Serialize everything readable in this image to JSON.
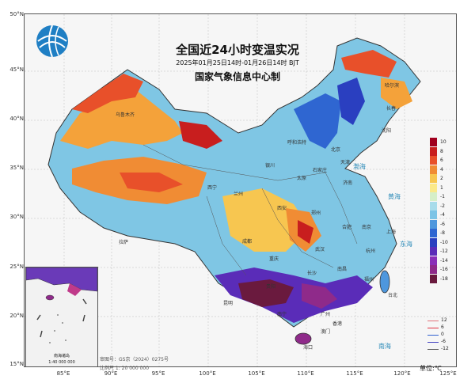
{
  "title": "全国近24小时变温实况",
  "subtitle": "2025年01月25日14时-01月26日14时 BJT",
  "agency": "国家气象信息中心制",
  "unit_label": "单位:℃",
  "approval": "审图号：GS京（2024）0275号",
  "scale": "比例尺 1: 20 000 000",
  "inset": {
    "title": "南海诸岛",
    "scale": "1:40 000 000"
  },
  "lat_labels": [
    "50°N",
    "45°N",
    "40°N",
    "35°N",
    "30°N",
    "25°N",
    "20°N",
    "15°N"
  ],
  "lon_labels": [
    "85°E",
    "90°E",
    "95°E",
    "100°E",
    "105°E",
    "110°E",
    "115°E",
    "120°E",
    "125°E"
  ],
  "legend": {
    "labels": [
      "10",
      "8",
      "6",
      "4",
      "2",
      "1",
      "-1",
      "-2",
      "-4",
      "-6",
      "-8",
      "-10",
      "-12",
      "-14",
      "-16",
      "-18"
    ],
    "colors": [
      "#a0001e",
      "#c81e1e",
      "#e8502a",
      "#f08c34",
      "#f7c650",
      "#fbe98a",
      "#d6efc8",
      "#a8dceb",
      "#7cc4e6",
      "#4e97dd",
      "#2f66d1",
      "#2a3fc0",
      "#5a2cb8",
      "#8a2fb8",
      "#8f2a8a",
      "#6a1a3e"
    ]
  },
  "contour_legend": [
    {
      "label": "12",
      "color": "#e0707a"
    },
    {
      "label": "6",
      "color": "#e03040"
    },
    {
      "label": "0",
      "color": "#3060d0"
    },
    {
      "label": "-6",
      "color": "#4040c0"
    },
    {
      "label": "-12",
      "color": "#606060"
    }
  ],
  "cities": [
    {
      "name": "哈尔滨"
    },
    {
      "name": "长春"
    },
    {
      "name": "沈阳"
    },
    {
      "name": "呼和浩特"
    },
    {
      "name": "北京"
    },
    {
      "name": "天津"
    },
    {
      "name": "石家庄"
    },
    {
      "name": "太原"
    },
    {
      "name": "济南"
    },
    {
      "name": "银川"
    },
    {
      "name": "兰州"
    },
    {
      "name": "西宁"
    },
    {
      "name": "西安"
    },
    {
      "name": "郑州"
    },
    {
      "name": "合肥"
    },
    {
      "name": "南京"
    },
    {
      "name": "上海"
    },
    {
      "name": "杭州"
    },
    {
      "name": "武汉"
    },
    {
      "name": "成都"
    },
    {
      "name": "重庆"
    },
    {
      "name": "长沙"
    },
    {
      "name": "南昌"
    },
    {
      "name": "福州"
    },
    {
      "name": "台北"
    },
    {
      "name": "贵阳"
    },
    {
      "name": "昆明"
    },
    {
      "name": "南宁"
    },
    {
      "name": "广州"
    },
    {
      "name": "香港"
    },
    {
      "name": "澳门"
    },
    {
      "name": "海口"
    },
    {
      "name": "拉萨"
    },
    {
      "name": "乌鲁木齐"
    }
  ],
  "seas": [
    {
      "name": "黄海"
    },
    {
      "name": "东海"
    },
    {
      "name": "南海"
    },
    {
      "name": "渤海"
    }
  ]
}
